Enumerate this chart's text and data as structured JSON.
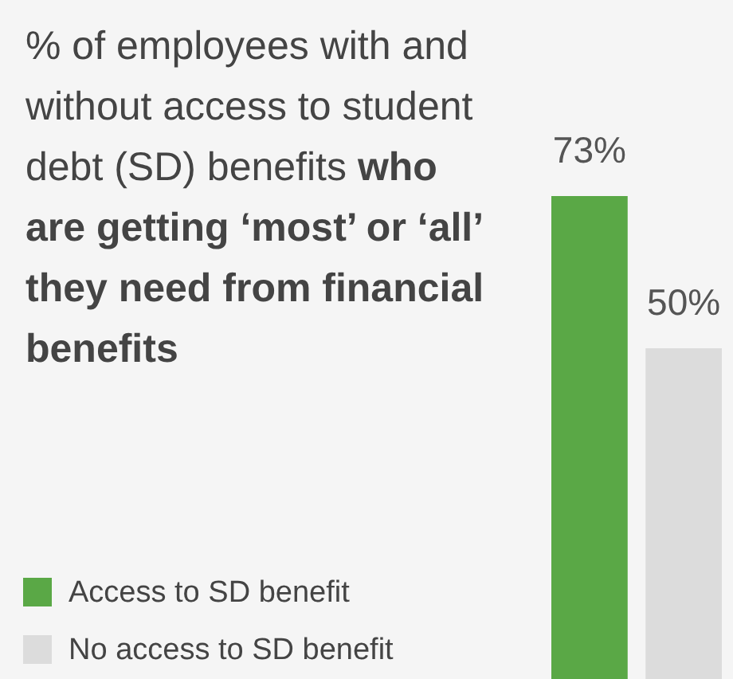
{
  "chart_data": {
    "type": "bar",
    "title": "% of employees with and without access to student debt (SD) benefits",
    "subtitle": "who are getting ‘most’ or ‘all’ they need from financial benefits",
    "categories": [
      null
    ],
    "series": [
      {
        "name": "Access to SD benefit",
        "color": "#5aa846",
        "values": [
          73
        ],
        "value_labels": [
          "73%"
        ]
      },
      {
        "name": "No access to SD benefit",
        "color": "#dcdcdc",
        "values": [
          50
        ],
        "value_labels": [
          "50%"
        ]
      }
    ],
    "legend": "bottom left",
    "tick_labels": false
  }
}
